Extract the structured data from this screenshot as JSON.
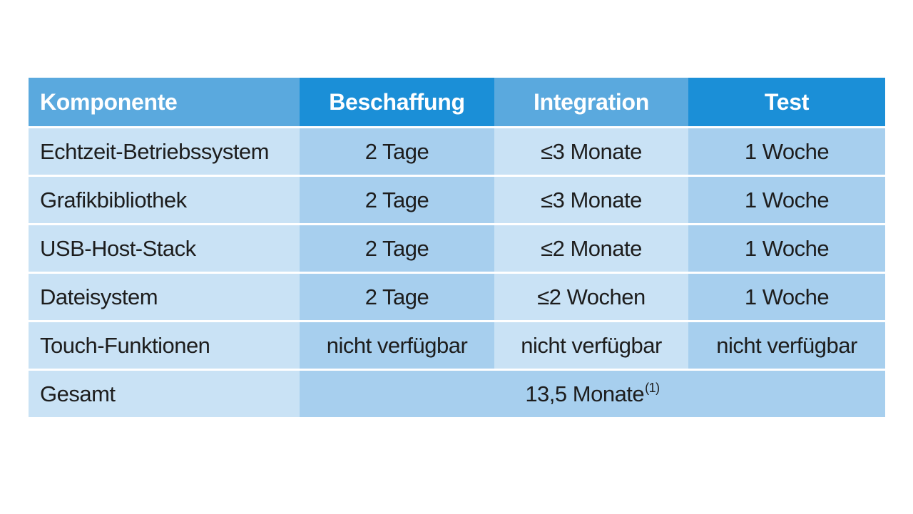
{
  "table": {
    "headers": [
      "Komponente",
      "Beschaffung",
      "Integration",
      "Test"
    ],
    "rows": [
      [
        "Echtzeit-Betriebssystem",
        "2 Tage",
        "≤3 Monate",
        "1 Woche"
      ],
      [
        "Grafikbibliothek",
        "2 Tage",
        "≤3 Monate",
        "1 Woche"
      ],
      [
        "USB-Host-Stack",
        "2 Tage",
        "≤2 Monate",
        "1 Woche"
      ],
      [
        "Dateisystem",
        "2 Tage",
        "≤2 Wochen",
        "1 Woche"
      ],
      [
        "Touch-Funktionen",
        "nicht verfügbar",
        "nicht verfügbar",
        "nicht verfügbar"
      ]
    ],
    "total": {
      "label": "Gesamt",
      "value": "13,5 Monate",
      "footnote": "(1)"
    }
  },
  "colors": {
    "header_light": "#5aa9de",
    "header_dark": "#1b8fd7",
    "row_light": "#c9e2f5",
    "row_dark": "#a7cfee"
  }
}
